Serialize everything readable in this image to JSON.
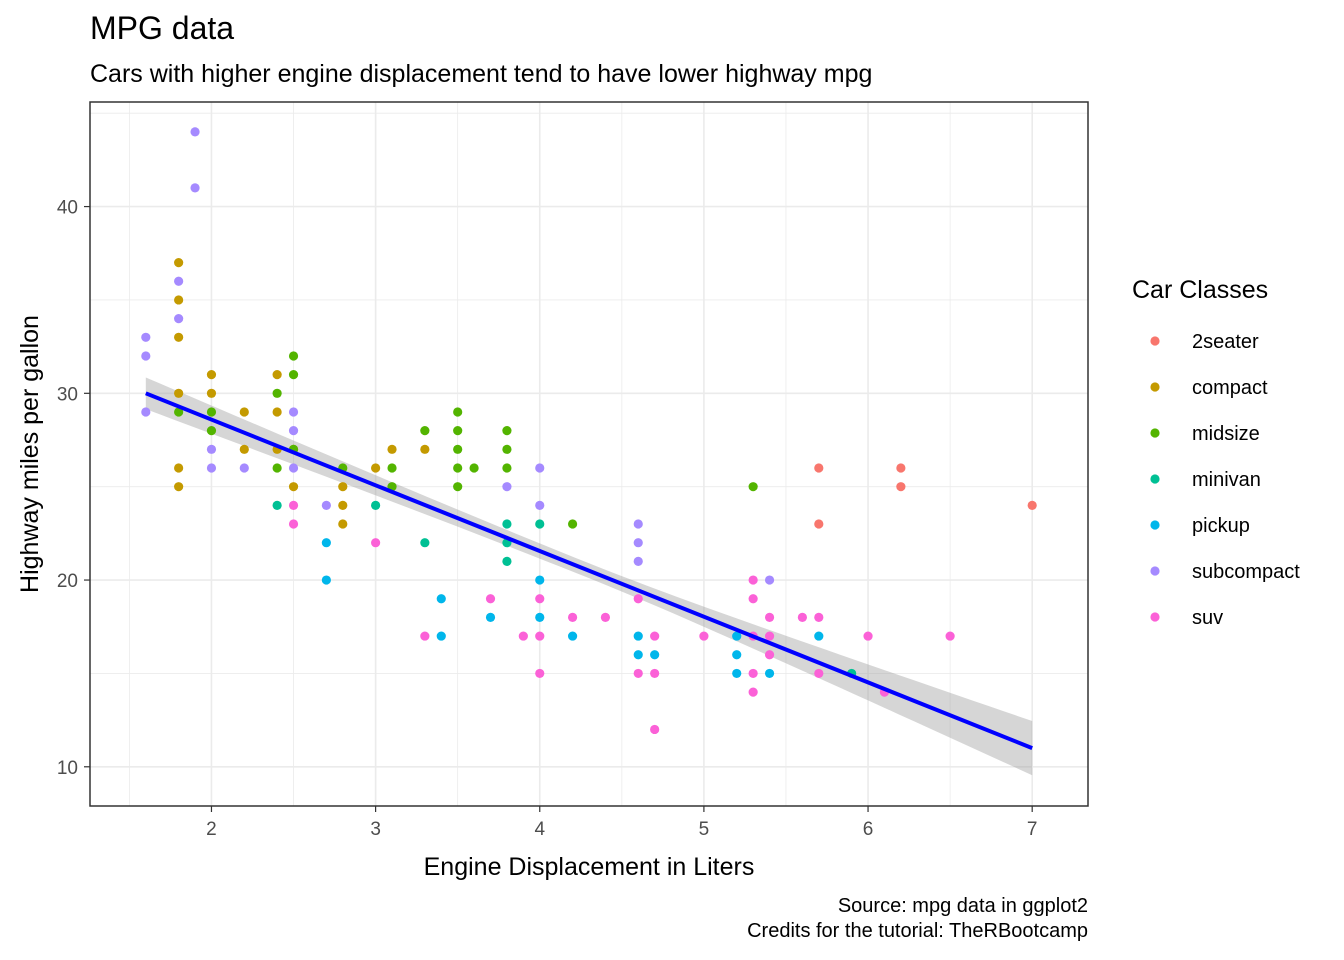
{
  "chart_data": {
    "type": "scatter",
    "title": "MPG data",
    "subtitle": "Cars with higher engine displacement tend to have lower highway mpg",
    "xlabel": "Engine Displacement in Liters",
    "ylabel": "Highway miles per gallon",
    "caption_lines": [
      "Source: mpg data in ggplot2",
      "Credits for the tutorial: TheRBootcamp"
    ],
    "legend_title": "Car Classes",
    "legend_position": "right",
    "grid": true,
    "xlim": [
      1.26,
      7.34
    ],
    "ylim": [
      7.9,
      45.6
    ],
    "x_ticks": [
      2,
      3,
      4,
      5,
      6,
      7
    ],
    "y_ticks": [
      10,
      20,
      30,
      40
    ],
    "series": [
      {
        "name": "2seater",
        "color": "#F8766D",
        "points": [
          [
            5.7,
            26
          ],
          [
            5.7,
            23
          ],
          [
            6.2,
            26
          ],
          [
            6.2,
            25
          ],
          [
            7.0,
            24
          ]
        ]
      },
      {
        "name": "compact",
        "color": "#C49A00",
        "points": [
          [
            1.8,
            37
          ],
          [
            1.8,
            35
          ],
          [
            1.8,
            33
          ],
          [
            1.8,
            30
          ],
          [
            1.8,
            26
          ],
          [
            1.8,
            25
          ],
          [
            2.0,
            31
          ],
          [
            2.0,
            30
          ],
          [
            2.2,
            29
          ],
          [
            2.2,
            27
          ],
          [
            2.4,
            31
          ],
          [
            2.4,
            29
          ],
          [
            2.4,
            27
          ],
          [
            2.5,
            27
          ],
          [
            2.5,
            25
          ],
          [
            2.8,
            25
          ],
          [
            2.8,
            24
          ],
          [
            2.8,
            23
          ],
          [
            3.0,
            26
          ],
          [
            3.1,
            27
          ],
          [
            3.3,
            27
          ]
        ]
      },
      {
        "name": "midsize",
        "color": "#53B400",
        "points": [
          [
            1.8,
            29
          ],
          [
            2.0,
            29
          ],
          [
            2.0,
            28
          ],
          [
            2.4,
            30
          ],
          [
            2.4,
            26
          ],
          [
            2.5,
            32
          ],
          [
            2.5,
            31
          ],
          [
            2.5,
            27
          ],
          [
            2.8,
            26
          ],
          [
            3.1,
            26
          ],
          [
            3.1,
            25
          ],
          [
            3.3,
            28
          ],
          [
            3.5,
            29
          ],
          [
            3.5,
            28
          ],
          [
            3.5,
            27
          ],
          [
            3.5,
            26
          ],
          [
            3.5,
            25
          ],
          [
            3.6,
            26
          ],
          [
            3.8,
            28
          ],
          [
            3.8,
            27
          ],
          [
            3.8,
            26
          ],
          [
            4.2,
            23
          ],
          [
            5.3,
            25
          ]
        ]
      },
      {
        "name": "minivan",
        "color": "#00C094",
        "points": [
          [
            2.4,
            24
          ],
          [
            3.0,
            24
          ],
          [
            3.3,
            22
          ],
          [
            3.8,
            23
          ],
          [
            3.8,
            22
          ],
          [
            3.8,
            21
          ],
          [
            4.0,
            23
          ],
          [
            5.9,
            15
          ]
        ]
      },
      {
        "name": "pickup",
        "color": "#00B6EB",
        "points": [
          [
            2.7,
            22
          ],
          [
            2.7,
            20
          ],
          [
            3.4,
            19
          ],
          [
            3.4,
            17
          ],
          [
            3.7,
            18
          ],
          [
            4.0,
            20
          ],
          [
            4.0,
            18
          ],
          [
            4.2,
            17
          ],
          [
            4.6,
            17
          ],
          [
            4.6,
            16
          ],
          [
            4.7,
            16
          ],
          [
            5.2,
            17
          ],
          [
            5.2,
            16
          ],
          [
            5.2,
            15
          ],
          [
            5.4,
            15
          ],
          [
            5.7,
            17
          ]
        ]
      },
      {
        "name": "subcompact",
        "color": "#A58AFF",
        "points": [
          [
            1.6,
            33
          ],
          [
            1.6,
            32
          ],
          [
            1.6,
            29
          ],
          [
            1.8,
            36
          ],
          [
            1.8,
            34
          ],
          [
            1.9,
            44
          ],
          [
            1.9,
            41
          ],
          [
            2.0,
            27
          ],
          [
            2.0,
            26
          ],
          [
            2.2,
            26
          ],
          [
            2.5,
            29
          ],
          [
            2.5,
            28
          ],
          [
            2.5,
            26
          ],
          [
            2.7,
            24
          ],
          [
            3.8,
            25
          ],
          [
            4.0,
            26
          ],
          [
            4.0,
            24
          ],
          [
            4.6,
            23
          ],
          [
            4.6,
            22
          ],
          [
            4.6,
            21
          ],
          [
            5.4,
            20
          ]
        ]
      },
      {
        "name": "suv",
        "color": "#FB61D7",
        "points": [
          [
            2.5,
            24
          ],
          [
            2.5,
            23
          ],
          [
            3.0,
            22
          ],
          [
            3.3,
            17
          ],
          [
            3.7,
            19
          ],
          [
            3.9,
            17
          ],
          [
            4.0,
            19
          ],
          [
            4.0,
            17
          ],
          [
            4.0,
            15
          ],
          [
            4.2,
            18
          ],
          [
            4.4,
            18
          ],
          [
            4.6,
            19
          ],
          [
            4.6,
            15
          ],
          [
            4.7,
            17
          ],
          [
            4.7,
            15
          ],
          [
            4.7,
            12
          ],
          [
            5.0,
            17
          ],
          [
            5.3,
            20
          ],
          [
            5.3,
            19
          ],
          [
            5.3,
            17
          ],
          [
            5.3,
            15
          ],
          [
            5.3,
            14
          ],
          [
            5.4,
            18
          ],
          [
            5.4,
            17
          ],
          [
            5.4,
            16
          ],
          [
            5.6,
            18
          ],
          [
            5.7,
            18
          ],
          [
            5.7,
            15
          ],
          [
            6.0,
            17
          ],
          [
            6.1,
            14
          ],
          [
            6.5,
            17
          ]
        ]
      }
    ],
    "trend_line": {
      "method": "lm",
      "x": [
        1.6,
        7.0
      ],
      "y": [
        30.0,
        11.0
      ],
      "color": "#0000FF",
      "ci_halfwidth_start": 0.85,
      "ci_halfwidth_mid": 0.4,
      "ci_halfwidth_end": 1.45
    }
  }
}
